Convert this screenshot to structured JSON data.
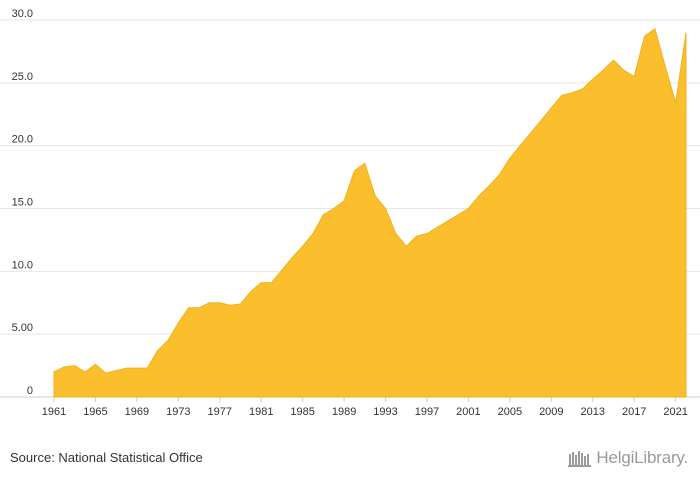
{
  "source": "Source: National Statistical Office",
  "logo_text": "HelgiLibrary.",
  "colors": {
    "area": "#fbbf2e",
    "area_stroke": "#f0b21a",
    "grid": "#e6e6e6",
    "text": "#333333"
  },
  "chart_data": {
    "type": "area",
    "title": "",
    "xlabel": "",
    "ylabel": "",
    "ylim": [
      0,
      30
    ],
    "yticks": [
      "0",
      "5.00",
      "10.0",
      "15.0",
      "20.0",
      "25.0",
      "30.0"
    ],
    "xticks": [
      "1961",
      "1965",
      "1969",
      "1973",
      "1977",
      "1981",
      "1985",
      "1989",
      "1993",
      "1997",
      "2001",
      "2005",
      "2009",
      "2013",
      "2017",
      "2021"
    ],
    "grid": true,
    "legend": "none",
    "x": [
      1961,
      1962,
      1963,
      1964,
      1965,
      1966,
      1967,
      1968,
      1969,
      1970,
      1971,
      1972,
      1973,
      1974,
      1975,
      1976,
      1977,
      1978,
      1979,
      1980,
      1981,
      1982,
      1983,
      1984,
      1985,
      1986,
      1987,
      1988,
      1989,
      1990,
      1991,
      1992,
      1993,
      1994,
      1995,
      1996,
      1997,
      1998,
      1999,
      2000,
      2001,
      2002,
      2003,
      2004,
      2005,
      2006,
      2007,
      2008,
      2009,
      2010,
      2011,
      2012,
      2013,
      2014,
      2015,
      2016,
      2017,
      2018,
      2019,
      2020,
      2021,
      2022
    ],
    "values": [
      2.0,
      2.4,
      2.5,
      2.0,
      2.6,
      1.9,
      2.1,
      2.3,
      2.3,
      2.3,
      3.7,
      4.5,
      5.9,
      7.1,
      7.1,
      7.5,
      7.5,
      7.3,
      7.4,
      8.4,
      9.1,
      9.1,
      10.1,
      11.1,
      12.0,
      13.0,
      14.5,
      15.0,
      15.6,
      18.0,
      18.6,
      16.0,
      15.0,
      13.0,
      12.0,
      12.8,
      13.0,
      13.5,
      14.0,
      14.5,
      15.0,
      16.0,
      16.8,
      17.7,
      19.0,
      20.0,
      21.0,
      22.0,
      23.0,
      24.0,
      24.2,
      24.5,
      25.3,
      26.0,
      26.8,
      26.0,
      25.5,
      28.7,
      29.3,
      26.3,
      23.4,
      29.0
    ]
  }
}
